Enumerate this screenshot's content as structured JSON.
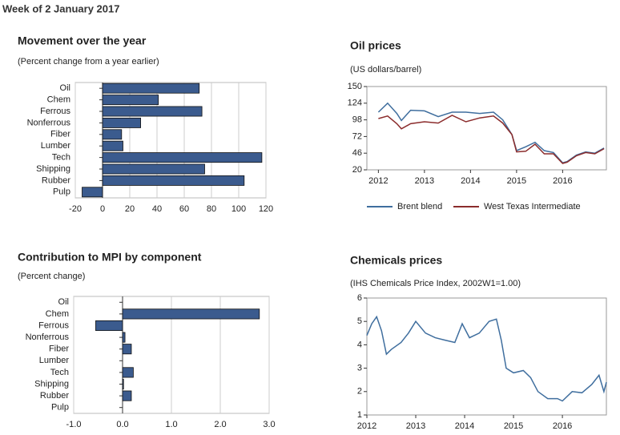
{
  "header": {
    "title": "Week of 2 January 2017"
  },
  "chart_data": [
    {
      "type": "barh",
      "title": "Movement over the year",
      "subtitle": "(Percent change from a year earlier)",
      "categories": [
        "Oil",
        "Chem",
        "Ferrous",
        "Nonferrous",
        "Fiber",
        "Lumber",
        "Tech",
        "Shipping",
        "Rubber",
        "Pulp"
      ],
      "values": [
        71,
        41,
        73,
        28,
        14,
        15,
        117,
        75,
        104,
        -15
      ],
      "color": "#3b5b8e",
      "xlim": [
        -20,
        120
      ],
      "xticks": [
        -20,
        0,
        20,
        40,
        60,
        80,
        100,
        120
      ],
      "grid": true
    },
    {
      "type": "line",
      "title": "Oil prices",
      "subtitle": "(US dollars/barrel)",
      "x": [
        2012.0,
        2012.2,
        2012.4,
        2012.5,
        2012.7,
        2013.0,
        2013.3,
        2013.6,
        2013.9,
        2014.2,
        2014.5,
        2014.7,
        2014.9,
        2015.0,
        2015.2,
        2015.4,
        2015.6,
        2015.8,
        2016.0,
        2016.1,
        2016.3,
        2016.5,
        2016.7,
        2016.9
      ],
      "series": [
        {
          "name": "Brent blend",
          "color": "#3f6e9e",
          "values": [
            110,
            124,
            108,
            97,
            113,
            112,
            103,
            110,
            110,
            108,
            110,
            98,
            75,
            50,
            56,
            63,
            50,
            47,
            31,
            33,
            43,
            48,
            46,
            54
          ]
        },
        {
          "name": "West Texas Intermediate",
          "color": "#8b2c2c",
          "values": [
            100,
            104,
            92,
            84,
            92,
            95,
            93,
            105,
            95,
            101,
            104,
            93,
            75,
            48,
            49,
            60,
            45,
            45,
            30,
            32,
            42,
            47,
            45,
            53
          ]
        }
      ],
      "xlim": [
        2011.75,
        2016.95
      ],
      "xticks": [
        2012,
        2013,
        2014,
        2015,
        2016
      ],
      "ylim": [
        20,
        150
      ],
      "yticks": [
        20,
        46,
        72,
        98,
        124,
        150
      ],
      "grid": false
    },
    {
      "type": "barh",
      "title": "Contribution to MPI by component",
      "subtitle": "(Percent change)",
      "categories": [
        "Oil",
        "Chem",
        "Ferrous",
        "Nonferrous",
        "Fiber",
        "Lumber",
        "Tech",
        "Shipping",
        "Rubber",
        "Pulp"
      ],
      "values": [
        0,
        2.8,
        -0.55,
        0.05,
        0.18,
        0,
        0.22,
        0.02,
        0.18,
        0
      ],
      "color": "#3b5b8e",
      "xlim": [
        -1,
        3
      ],
      "xticks": [
        {
          "value": -1,
          "label": "-1.0"
        },
        {
          "value": 0,
          "label": "0.0"
        },
        {
          "value": 1,
          "label": "1.0"
        },
        {
          "value": 2,
          "label": "2.0"
        },
        {
          "value": 3,
          "label": "3.0"
        }
      ],
      "grid": true
    },
    {
      "type": "line",
      "title": "Chemicals prices",
      "subtitle": "(IHS Chemicals Price Index, 2002W1=1.00)",
      "x": [
        2012.0,
        2012.1,
        2012.2,
        2012.3,
        2012.4,
        2012.5,
        2012.7,
        2012.85,
        2013.0,
        2013.2,
        2013.4,
        2013.6,
        2013.8,
        2013.95,
        2014.1,
        2014.3,
        2014.5,
        2014.65,
        2014.75,
        2014.85,
        2015.0,
        2015.2,
        2015.35,
        2015.5,
        2015.7,
        2015.9,
        2016.0,
        2016.2,
        2016.4,
        2016.6,
        2016.75,
        2016.85,
        2016.9
      ],
      "values": [
        4.4,
        4.9,
        5.2,
        4.6,
        3.6,
        3.8,
        4.1,
        4.5,
        5.0,
        4.5,
        4.3,
        4.2,
        4.1,
        4.9,
        4.3,
        4.5,
        5.0,
        5.1,
        4.2,
        3.0,
        2.8,
        2.9,
        2.6,
        2.0,
        1.7,
        1.7,
        1.6,
        2.0,
        1.95,
        2.3,
        2.7,
        2.0,
        2.4
      ],
      "color": "#3f6e9e",
      "xlim": [
        2012,
        2016.9
      ],
      "xticks": [
        2012,
        2013,
        2014,
        2015,
        2016
      ],
      "ylim": [
        1,
        6
      ],
      "yticks": [
        1,
        2,
        3,
        4,
        5,
        6
      ],
      "grid": false
    }
  ]
}
